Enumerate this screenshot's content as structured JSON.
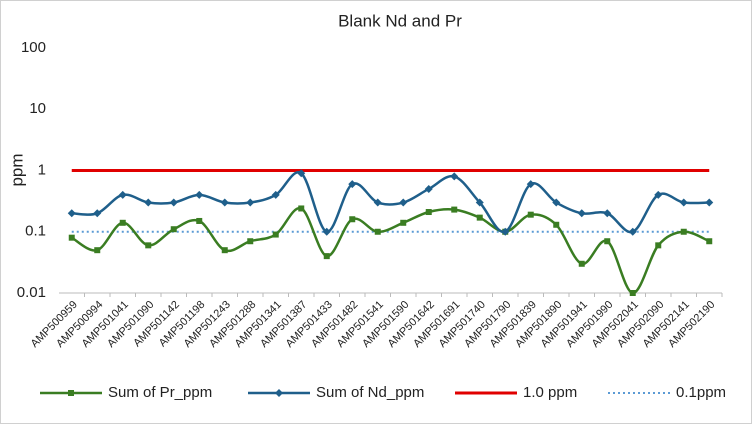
{
  "chart_data": {
    "type": "line",
    "title": "Blank Nd and Pr",
    "y_label": "ppm",
    "log_scale": true,
    "ylim": [
      0.01,
      100
    ],
    "yticks": [
      0.01,
      0.1,
      1,
      10,
      100
    ],
    "grid": false,
    "legend": "bottom",
    "categories": [
      "AMP500959",
      "AMP500994",
      "AMP501041",
      "AMP501090",
      "AMP501142",
      "AMP501198",
      "AMP501243",
      "AMP501288",
      "AMP501341",
      "AMP501387",
      "AMP501433",
      "AMP501482",
      "AMP501541",
      "AMP501590",
      "AMP501642",
      "AMP501691",
      "AMP501740",
      "AMP501790",
      "AMP501839",
      "AMP501890",
      "AMP501941",
      "AMP501990",
      "AMP502041",
      "AMP502090",
      "AMP502141",
      "AMP502190"
    ],
    "series": [
      {
        "name": "Sum of Pr_ppm",
        "color": "#3a7d22",
        "marker": "square",
        "smooth": true,
        "values": [
          0.08,
          0.05,
          0.14,
          0.06,
          0.11,
          0.15,
          0.05,
          0.07,
          0.09,
          0.24,
          0.04,
          0.16,
          0.1,
          0.14,
          0.21,
          0.23,
          0.17,
          0.1,
          0.19,
          0.13,
          0.03,
          0.07,
          0.01,
          0.06,
          0.1,
          0.07
        ]
      },
      {
        "name": "Sum of Nd_ppm",
        "color": "#1f5f8b",
        "marker": "diamond",
        "smooth": true,
        "values": [
          0.2,
          0.2,
          0.4,
          0.3,
          0.3,
          0.4,
          0.3,
          0.3,
          0.4,
          0.9,
          0.1,
          0.6,
          0.3,
          0.3,
          0.5,
          0.8,
          0.3,
          0.1,
          0.6,
          0.3,
          0.2,
          0.2,
          0.1,
          0.4,
          0.3,
          0.3
        ]
      },
      {
        "name": "1.0 ppm",
        "color": "#e00000",
        "dash": "solid",
        "values": [
          1,
          1,
          1,
          1,
          1,
          1,
          1,
          1,
          1,
          1,
          1,
          1,
          1,
          1,
          1,
          1,
          1,
          1,
          1,
          1,
          1,
          1,
          1,
          1,
          1,
          1
        ]
      },
      {
        "name": "0.1ppm",
        "color": "#5b9bd5",
        "dash": "dotted",
        "values": [
          0.1,
          0.1,
          0.1,
          0.1,
          0.1,
          0.1,
          0.1,
          0.1,
          0.1,
          0.1,
          0.1,
          0.1,
          0.1,
          0.1,
          0.1,
          0.1,
          0.1,
          0.1,
          0.1,
          0.1,
          0.1,
          0.1,
          0.1,
          0.1,
          0.1,
          0.1
        ]
      }
    ]
  }
}
